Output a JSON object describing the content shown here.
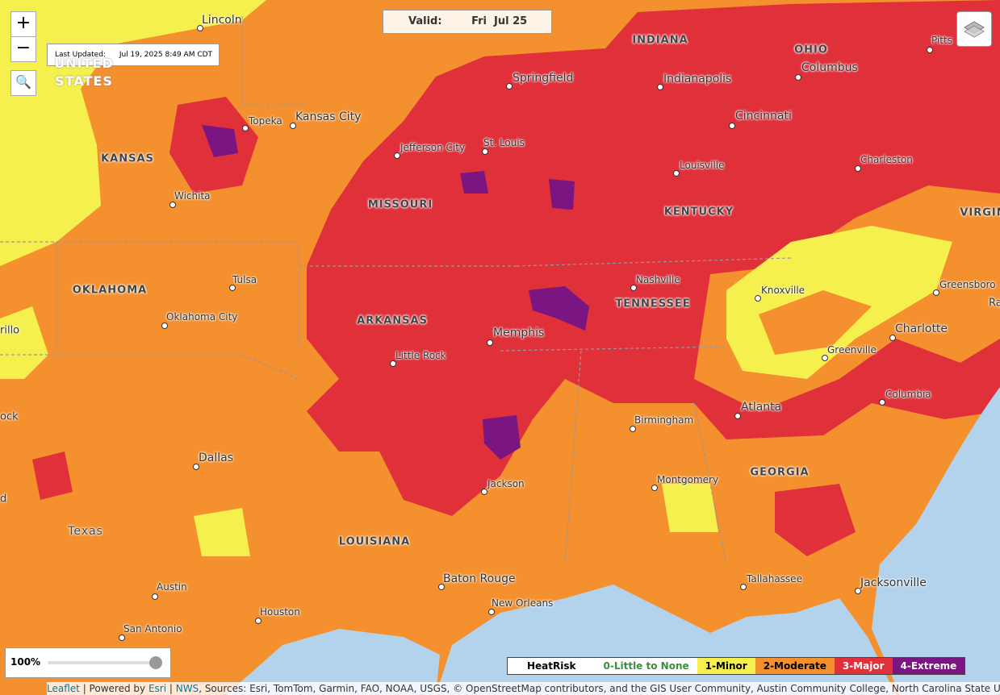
{
  "controls": {
    "zoom_in": "+",
    "zoom_out": "−"
  },
  "last_updated": {
    "label": "Last Updated:",
    "value": "Jul 19, 2025 8:49 AM CDT"
  },
  "valid": {
    "label": "Valid:",
    "value": "Fri  Jul 25"
  },
  "opacity": "100%",
  "legend": {
    "title": "HeatRisk",
    "items": [
      {
        "label": "0-Little to None",
        "color": "#ffffff"
      },
      {
        "label": "1-Minor",
        "color": "#f5f04d"
      },
      {
        "label": "2-Moderate",
        "color": "#f4902e"
      },
      {
        "label": "3-Major",
        "color": "#e0303a"
      },
      {
        "label": "4-Extreme",
        "color": "#7a1581"
      }
    ]
  },
  "map_labels": {
    "states": [
      "UNITED STATES",
      "INDIANA",
      "OHIO",
      "KANSAS",
      "MISSOURI",
      "KENTUCKY",
      "VIRGIN",
      "OKLAHOMA",
      "TENNESSEE",
      "ARKANSAS",
      "GEORGIA",
      "LOUISIANA",
      "Texas"
    ],
    "cities": [
      "Lincoln",
      "Springfield",
      "Indianapolis",
      "Columbus",
      "Pitts",
      "Topeka",
      "Kansas City",
      "Cincinnati",
      "Jefferson City",
      "St. Louis",
      "Charleston",
      "Louisville",
      "Wichita",
      "Tulsa",
      "Nashville",
      "Greensboro",
      "Knoxville",
      "Oklahoma City",
      "Memphis",
      "Charlotte",
      "Little Rock",
      "Greenville",
      "Columbia",
      "Atlanta",
      "Birmingham",
      "Dallas",
      "Montgomery",
      "Jackson",
      "Tallahassee",
      "Austin",
      "Baton Rouge",
      "Jacksonville",
      "New Orleans",
      "Houston",
      "San Antonio"
    ],
    "partial": [
      "rillo",
      "ock",
      "d",
      "Ra"
    ]
  },
  "attribution": {
    "leaflet": "Leaflet",
    "powered": "| Powered by",
    "esri": "Esri",
    "nws": "NWS",
    "sources": ", Sources: Esri, TomTom, Garmin, FAO, NOAA, USGS, © OpenStreetMap contributors, and the GIS User Community, Austin Community College, North Carolina State University, PSU Off..."
  }
}
